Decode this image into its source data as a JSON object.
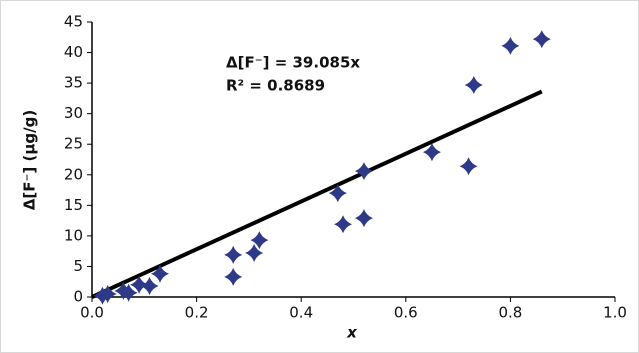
{
  "chart_data": {
    "type": "scatter",
    "xlabel": "x",
    "ylabel": "Δ[F⁻] (μg/g)",
    "annotations": [
      "Δ[F⁻] = 39.085x",
      "R² = 0.8689"
    ],
    "series": [
      {
        "color": "#2e3a87",
        "x": [
          0.86,
          0.8,
          0.73,
          0.72,
          0.65,
          0.52,
          0.52,
          0.48,
          0.47,
          0.27,
          0.27,
          0.32,
          0.31,
          0.13,
          0.11,
          0.07,
          0.06,
          0.03,
          0.09,
          0.02
        ],
        "values": [
          42.2,
          41.1,
          34.7,
          21.4,
          23.7,
          20.6,
          12.9,
          11.9,
          17.0,
          6.9,
          3.3,
          9.3,
          7.2,
          3.8,
          1.8,
          0.7,
          1.0,
          0.5,
          2.0,
          0.2
        ]
      }
    ],
    "trendline": {
      "slope": 39.085,
      "color": "#000000"
    },
    "xlim": [
      0,
      1
    ],
    "xticks": [
      {
        "value": 0,
        "label": "0.0"
      },
      {
        "value": 0.2,
        "label": "0.2"
      },
      {
        "value": 0.4,
        "label": "0.4"
      },
      {
        "value": 0.6,
        "label": "0.6"
      },
      {
        "value": 0.8,
        "label": "0.8"
      },
      {
        "value": 1,
        "label": "1.0"
      }
    ],
    "ylim": [
      0,
      45
    ],
    "yticks": [
      0,
      5,
      10,
      15,
      20,
      25,
      30,
      35,
      40,
      45
    ]
  }
}
